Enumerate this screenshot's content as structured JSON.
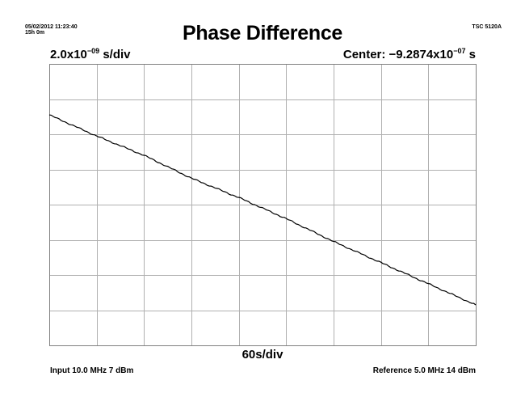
{
  "header": {
    "datetime": "05/02/2012 11:23:40",
    "duration": "15h 0m",
    "instrument": "TSC 5120A"
  },
  "chart_data": {
    "type": "line",
    "title": "Phase Difference",
    "x_scale_mantissa": "2.0x10",
    "x_scale_exponent": "−09",
    "x_scale_unit": " s/div",
    "center_prefix": "Center: −9.2874x10",
    "center_exponent": "−07",
    "center_unit": " s",
    "xlabel": "60s/div",
    "grid": true,
    "divisions": {
      "x": 9,
      "y": 8
    },
    "series": [
      {
        "x_div": [
          0,
          1,
          2,
          3,
          4,
          5,
          6,
          7,
          8,
          9
        ],
        "y_div": [
          6.55,
          5.95,
          5.4,
          4.75,
          4.2,
          3.6,
          2.95,
          2.35,
          1.75,
          1.15
        ],
        "color": "#000000"
      }
    ]
  },
  "footer": {
    "input": "Input 10.0 MHz 7 dBm",
    "reference": "Reference 5.0 MHz 14 dBm"
  }
}
